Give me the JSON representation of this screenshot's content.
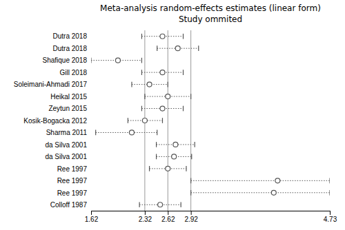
{
  "chart_data": {
    "type": "forest",
    "title": "Meta-analysis random-effects estimates (linear form)",
    "subtitle": "Study ommited",
    "categories": [
      "Dutra 2018",
      "Dutra 2018",
      "Shafique 2018",
      "Gill 2018",
      "Soleimani-Ahmadi 2017",
      "Heikal 2015",
      "Zeytun 2015",
      "Kosik-Bogacka 2012",
      "Sharma 2011",
      "da Silva 2001",
      "da Silva 2001",
      "Ree 1997",
      "Ree 1997",
      "Ree 1997",
      "Colloff 1987"
    ],
    "values": [
      2.55,
      2.75,
      1.97,
      2.55,
      2.38,
      2.62,
      2.55,
      2.32,
      2.15,
      2.72,
      2.7,
      2.62,
      4.05,
      4.0,
      2.52
    ],
    "ci_low": [
      2.28,
      2.48,
      1.62,
      2.28,
      2.15,
      2.32,
      2.28,
      2.1,
      1.68,
      2.47,
      2.47,
      2.38,
      2.92,
      2.92,
      2.25
    ],
    "ci_high": [
      2.82,
      3.02,
      2.28,
      2.82,
      2.62,
      2.92,
      2.82,
      2.55,
      2.48,
      2.97,
      2.93,
      2.86,
      4.73,
      4.73,
      2.79
    ],
    "reference_lines": [
      2.32,
      2.62,
      2.92
    ],
    "xlim": [
      1.62,
      4.73
    ],
    "xticks": [
      1.62,
      2.32,
      2.62,
      2.92,
      4.73
    ],
    "color": "#555555",
    "grid": false
  }
}
